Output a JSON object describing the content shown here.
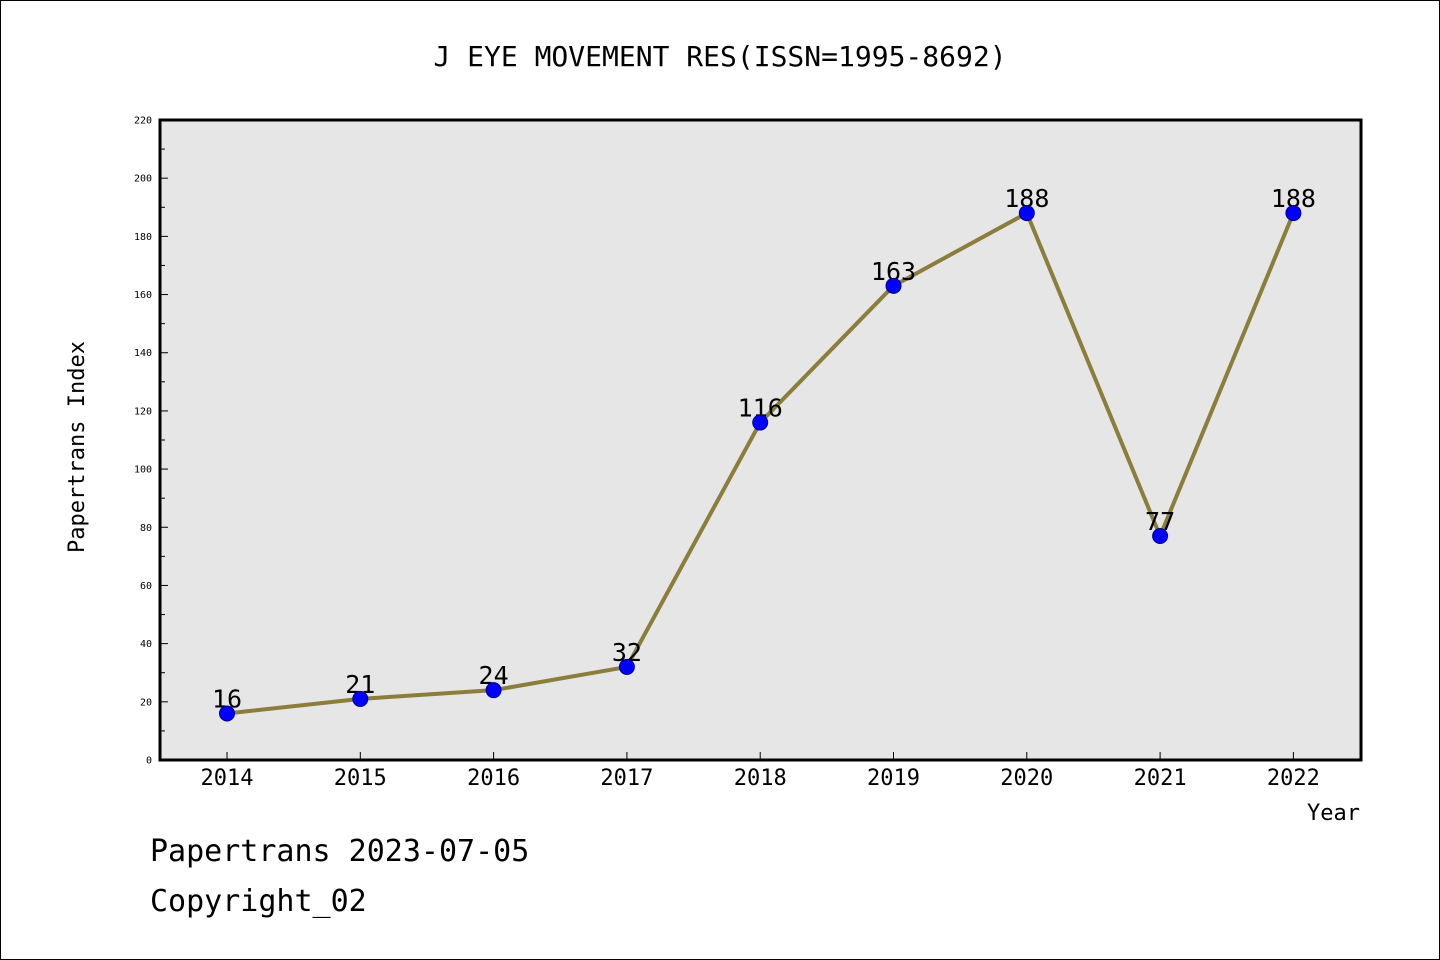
{
  "chart_data": {
    "type": "line",
    "title": "J EYE MOVEMENT RES(ISSN=1995-8692)",
    "xlabel": "Year",
    "ylabel": "Papertrans Index",
    "categories": [
      "2014",
      "2015",
      "2016",
      "2017",
      "2018",
      "2019",
      "2020",
      "2021",
      "2022"
    ],
    "values": [
      16,
      21,
      24,
      32,
      116,
      163,
      188,
      77,
      188
    ],
    "data_labels": [
      "16",
      "21",
      "24",
      "32",
      "116",
      "163",
      "188",
      "77",
      "188"
    ],
    "ylim": [
      0,
      220
    ],
    "yticks": [
      "0",
      "20",
      "40",
      "60",
      "80",
      "100",
      "120",
      "140",
      "160",
      "180",
      "200",
      "220"
    ],
    "grid": false,
    "legend": "none",
    "colors": {
      "line": "#8b7d3a",
      "marker": "#0000ff",
      "plot_background": "#e6e6e6"
    }
  },
  "footer": {
    "line1": "Papertrans 2023-07-05",
    "line2": "Copyright_02"
  }
}
